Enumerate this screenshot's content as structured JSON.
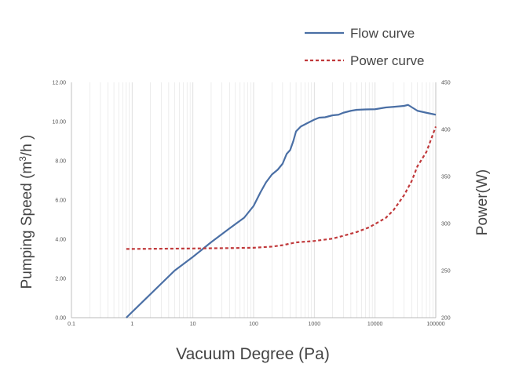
{
  "chart_data": {
    "type": "line",
    "xlabel": "Vacuum Degree (Pa)",
    "ylabel_left": {
      "prefix": "Pumping Speed (m",
      "sup": "3",
      "suffix": "/h )"
    },
    "ylabel_right": "Power(W)",
    "x_scale": "log",
    "xlim": [
      0.1,
      100000
    ],
    "x_ticks": [
      "0.1",
      "1",
      "10",
      "100",
      "1000",
      "10000",
      "100000"
    ],
    "y_left_lim": [
      0,
      12
    ],
    "y_left_ticks": [
      "0.00",
      "2.00",
      "4.00",
      "6.00",
      "8.00",
      "10.00",
      "12.00"
    ],
    "y_right_lim": [
      200,
      450
    ],
    "y_right_ticks": [
      "200",
      "250",
      "300",
      "350",
      "400",
      "450"
    ],
    "grid": "vertical-log-minor",
    "legend_position": "top-right",
    "colors": {
      "flow": "#4a6fa5",
      "power": "#c0383a",
      "grid": "#dcdcdc",
      "axis": "#b8b8b8"
    },
    "series": [
      {
        "name": "Flow curve",
        "axis": "left",
        "style": "solid",
        "x": [
          0.8,
          2,
          5,
          10,
          20,
          40,
          70,
          100,
          130,
          160,
          200,
          250,
          300,
          350,
          400,
          450,
          500,
          600,
          800,
          1000,
          1200,
          1500,
          2000,
          2500,
          3000,
          4000,
          5000,
          7000,
          10000,
          15000,
          20000,
          30000,
          35000,
          50000,
          70000,
          100000
        ],
        "y": [
          0.0,
          1.2,
          2.4,
          3.1,
          3.85,
          4.55,
          5.1,
          5.7,
          6.4,
          6.9,
          7.3,
          7.55,
          7.85,
          8.35,
          8.55,
          9.0,
          9.5,
          9.75,
          9.95,
          10.1,
          10.2,
          10.22,
          10.32,
          10.35,
          10.45,
          10.55,
          10.6,
          10.62,
          10.63,
          10.72,
          10.75,
          10.8,
          10.85,
          10.55,
          10.45,
          10.35
        ]
      },
      {
        "name": "Power curve",
        "axis": "right",
        "style": "dashed",
        "x": [
          0.8,
          10,
          50,
          100,
          200,
          300,
          500,
          800,
          1000,
          2000,
          3000,
          5000,
          8000,
          10000,
          15000,
          20000,
          30000,
          40000,
          50000,
          70000,
          100000
        ],
        "y": [
          273,
          273.5,
          274,
          274.3,
          275.5,
          277,
          280,
          281,
          281.5,
          284,
          287,
          291,
          296,
          299.5,
          306,
          314,
          330,
          345,
          361,
          376,
          403
        ]
      }
    ]
  }
}
